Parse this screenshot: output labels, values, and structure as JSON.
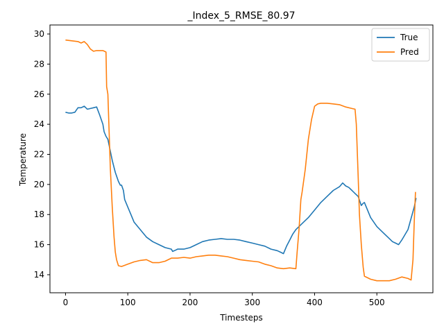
{
  "chart_data": {
    "type": "line",
    "title": "_Index_5_RMSE_80.97",
    "xlabel": "Timesteps",
    "ylabel": "Temperature",
    "xlim": [
      -25,
      590
    ],
    "ylim": [
      12.8,
      30.6
    ],
    "xticks": [
      0,
      100,
      200,
      300,
      400,
      500
    ],
    "yticks": [
      14,
      16,
      18,
      20,
      22,
      24,
      26,
      28,
      30
    ],
    "grid": false,
    "legend_position": "top-right",
    "series": [
      {
        "name": "True",
        "color": "#1f77b4",
        "x": [
          0,
          5,
          10,
          15,
          20,
          25,
          30,
          35,
          40,
          45,
          50,
          55,
          60,
          62,
          65,
          68,
          70,
          75,
          80,
          85,
          88,
          90,
          93,
          95,
          100,
          105,
          110,
          120,
          130,
          140,
          150,
          160,
          170,
          172,
          175,
          180,
          190,
          200,
          210,
          220,
          230,
          240,
          250,
          260,
          270,
          280,
          290,
          300,
          310,
          320,
          330,
          340,
          345,
          350,
          355,
          360,
          365,
          370,
          380,
          390,
          400,
          410,
          420,
          430,
          440,
          445,
          450,
          455,
          460,
          465,
          470,
          475,
          478,
          480,
          490,
          500,
          510,
          520,
          525,
          530,
          535,
          540,
          550,
          560,
          563
        ],
        "y": [
          24.8,
          24.75,
          24.75,
          24.8,
          25.1,
          25.1,
          25.2,
          25.0,
          25.05,
          25.1,
          25.15,
          24.6,
          24.0,
          23.5,
          23.2,
          23.0,
          22.6,
          21.6,
          20.8,
          20.2,
          19.95,
          19.95,
          19.6,
          19.0,
          18.5,
          18.0,
          17.5,
          17.0,
          16.5,
          16.2,
          16.0,
          15.8,
          15.7,
          15.55,
          15.6,
          15.7,
          15.7,
          15.8,
          16.0,
          16.2,
          16.3,
          16.35,
          16.4,
          16.35,
          16.35,
          16.3,
          16.2,
          16.1,
          16.0,
          15.9,
          15.7,
          15.6,
          15.5,
          15.4,
          15.9,
          16.3,
          16.7,
          17.0,
          17.4,
          17.8,
          18.3,
          18.8,
          19.2,
          19.6,
          19.85,
          20.1,
          19.9,
          19.8,
          19.6,
          19.4,
          19.2,
          18.6,
          18.75,
          18.8,
          17.8,
          17.2,
          16.8,
          16.4,
          16.2,
          16.1,
          16.0,
          16.3,
          17.0,
          18.5,
          19.1
        ]
      },
      {
        "name": "Pred",
        "color": "#ff7f0e",
        "x": [
          0,
          10,
          20,
          25,
          30,
          35,
          40,
          45,
          50,
          55,
          60,
          65,
          66,
          68,
          70,
          72,
          75,
          78,
          80,
          82,
          85,
          90,
          100,
          110,
          120,
          130,
          140,
          150,
          160,
          170,
          180,
          190,
          200,
          210,
          220,
          230,
          240,
          250,
          260,
          270,
          280,
          290,
          300,
          310,
          320,
          330,
          340,
          350,
          360,
          370,
          372,
          375,
          378,
          380,
          385,
          390,
          395,
          400,
          405,
          410,
          420,
          430,
          440,
          450,
          460,
          465,
          467,
          470,
          472,
          475,
          478,
          480,
          490,
          500,
          510,
          520,
          530,
          540,
          550,
          555,
          558,
          560,
          562
        ],
        "y": [
          29.6,
          29.55,
          29.5,
          29.4,
          29.5,
          29.3,
          29.0,
          28.85,
          28.9,
          28.9,
          28.9,
          28.8,
          26.5,
          26.0,
          23.5,
          21.0,
          18.5,
          16.5,
          15.5,
          15.0,
          14.6,
          14.55,
          14.7,
          14.85,
          14.95,
          15.0,
          14.8,
          14.8,
          14.9,
          15.1,
          15.1,
          15.15,
          15.1,
          15.2,
          15.25,
          15.3,
          15.3,
          15.25,
          15.2,
          15.1,
          15.0,
          14.95,
          14.9,
          14.85,
          14.7,
          14.6,
          14.45,
          14.4,
          14.45,
          14.4,
          15.5,
          17.0,
          19.0,
          19.5,
          21.0,
          23.0,
          24.3,
          25.2,
          25.35,
          25.4,
          25.4,
          25.35,
          25.3,
          25.15,
          25.05,
          25.0,
          24.0,
          20.5,
          18.0,
          16.0,
          14.5,
          13.9,
          13.7,
          13.6,
          13.6,
          13.6,
          13.7,
          13.85,
          13.75,
          13.65,
          15.0,
          17.5,
          19.5
        ]
      }
    ]
  }
}
